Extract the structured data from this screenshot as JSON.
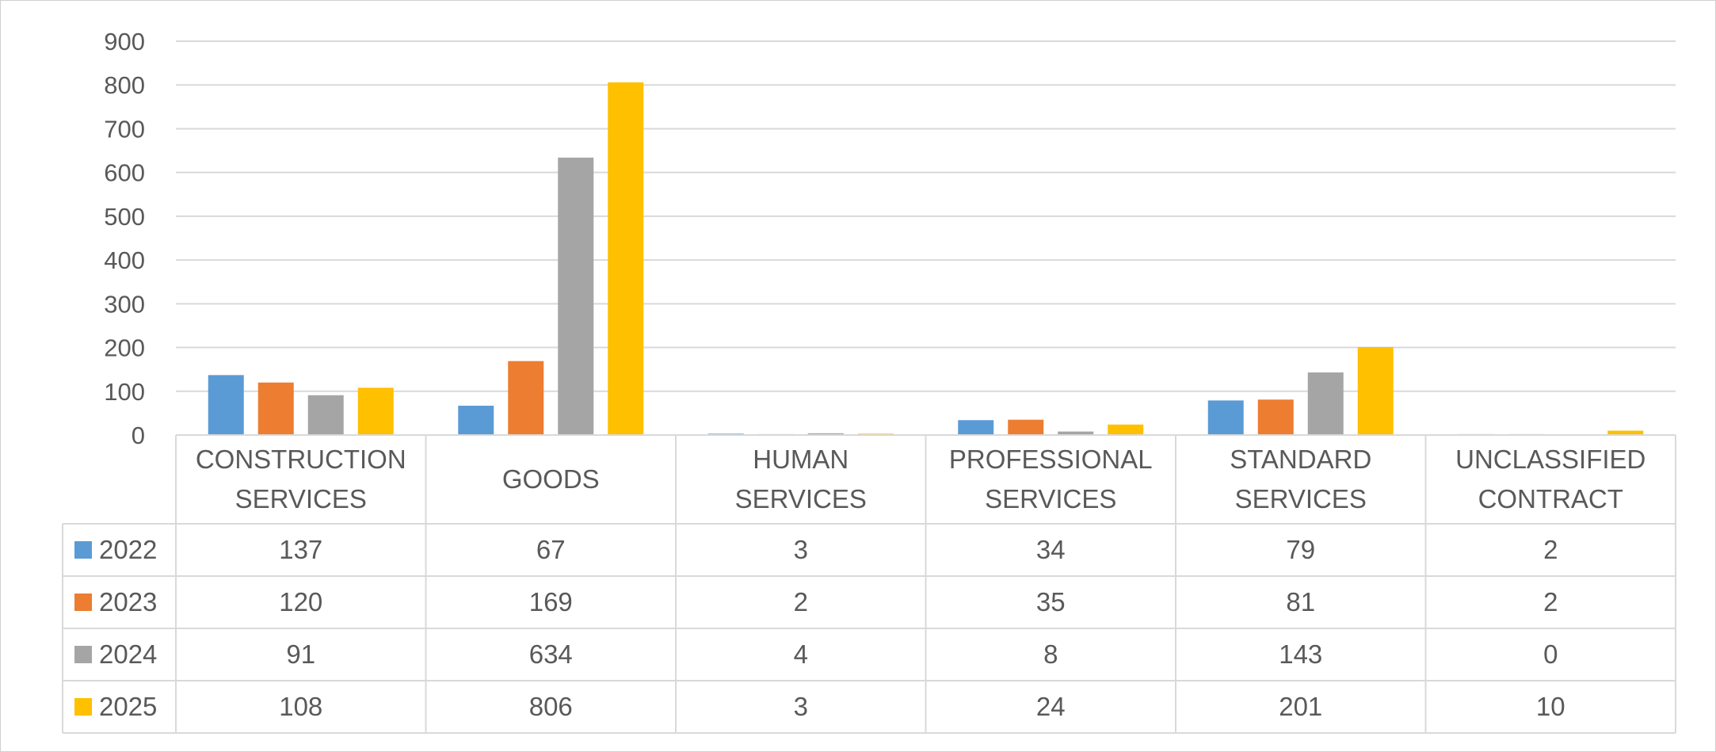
{
  "chart_data": {
    "type": "bar",
    "title": "",
    "xlabel": "",
    "ylabel": "",
    "ylim": [
      0,
      900
    ],
    "yticks": [
      0,
      100,
      200,
      300,
      400,
      500,
      600,
      700,
      800,
      900
    ],
    "grid": true,
    "legend": "data-table-left",
    "categories": [
      [
        "CONSTRUCTION",
        "SERVICES"
      ],
      [
        "GOODS"
      ],
      [
        "HUMAN",
        "SERVICES"
      ],
      [
        "PROFESSIONAL",
        "SERVICES"
      ],
      [
        "STANDARD",
        "SERVICES"
      ],
      [
        "UNCLASSIFIED",
        "CONTRACT"
      ]
    ],
    "series": [
      {
        "name": "2022",
        "color": "#5b9bd5",
        "values": [
          137,
          67,
          3,
          34,
          79,
          2
        ]
      },
      {
        "name": "2023",
        "color": "#ed7d31",
        "values": [
          120,
          169,
          2,
          35,
          81,
          2
        ]
      },
      {
        "name": "2024",
        "color": "#a5a5a5",
        "values": [
          91,
          634,
          4,
          8,
          143,
          0
        ]
      },
      {
        "name": "2025",
        "color": "#ffc000",
        "values": [
          108,
          806,
          3,
          24,
          201,
          10
        ]
      }
    ]
  }
}
